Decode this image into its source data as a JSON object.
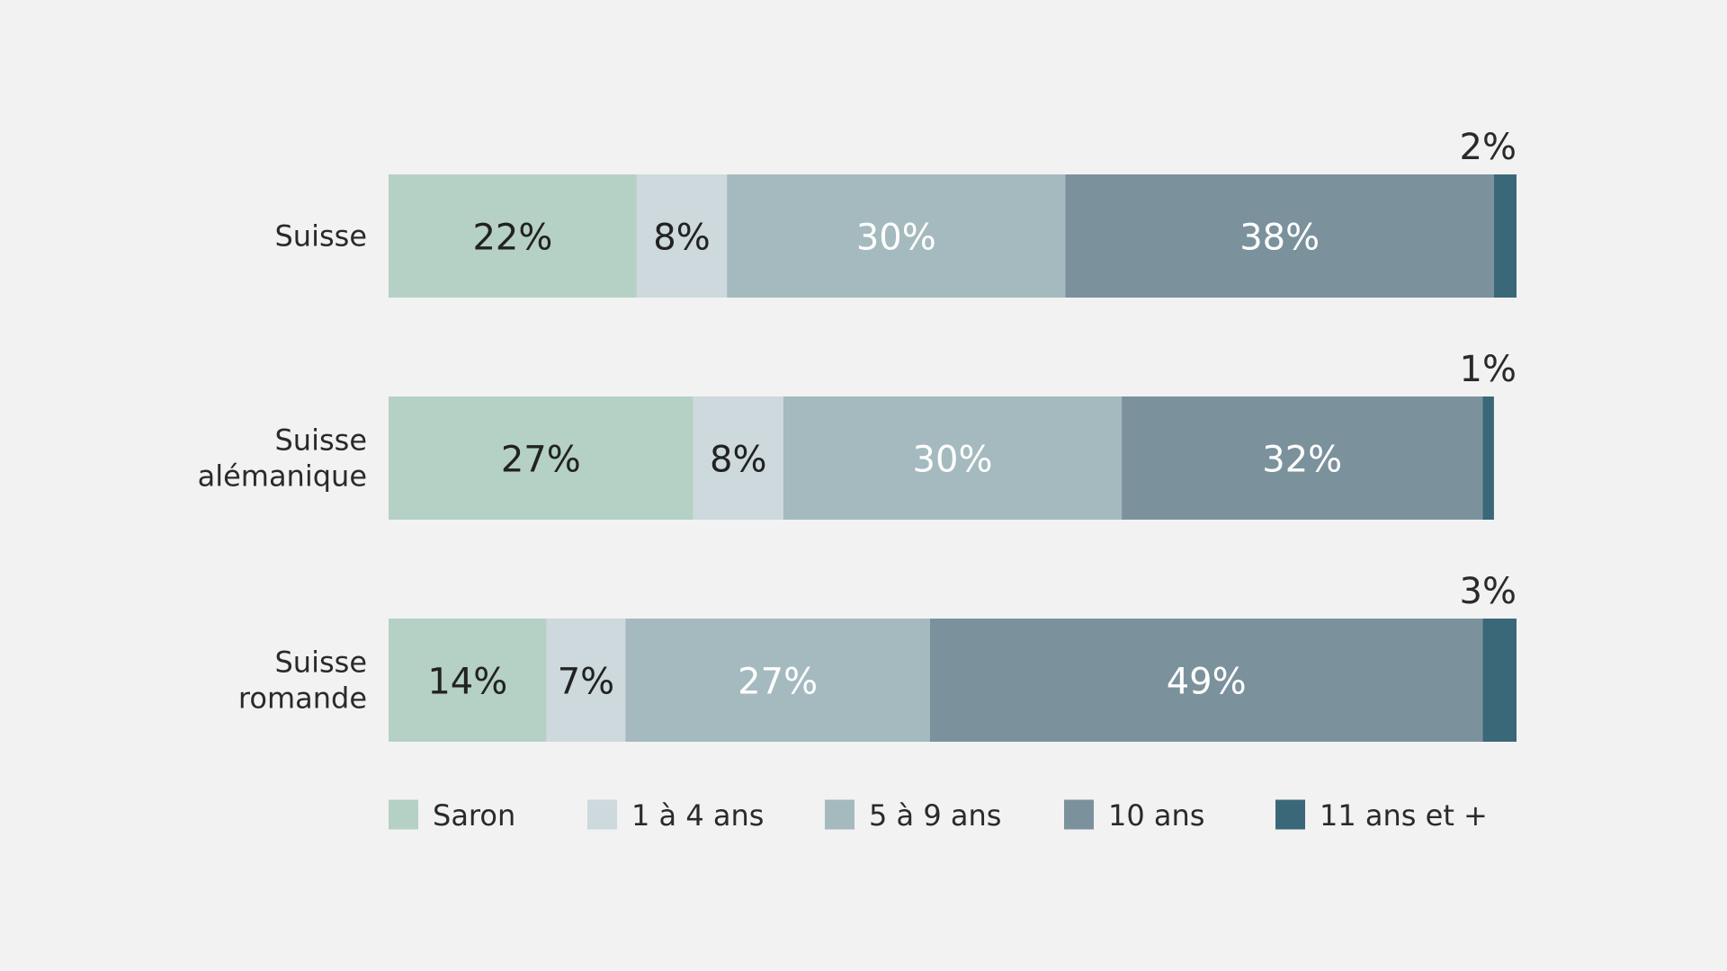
{
  "chart_data": {
    "type": "bar",
    "orientation": "horizontal",
    "stacked": true,
    "categories": [
      "Suisse",
      "Suisse alémanique",
      "Suisse romande"
    ],
    "category_lines": [
      [
        "Suisse"
      ],
      [
        "Suisse",
        "alémanique"
      ],
      [
        "Suisse",
        "romande"
      ]
    ],
    "series": [
      {
        "name": "Saron",
        "values": [
          22,
          27,
          14
        ],
        "labels": [
          "22%",
          "27%",
          "14%"
        ],
        "color": "#b5d0c5",
        "label_color": "#222222"
      },
      {
        "name": "1 à 4 ans",
        "values": [
          8,
          8,
          7
        ],
        "labels": [
          "8%",
          "8%",
          "7%"
        ],
        "color": "#cdd9dc",
        "label_color": "#222222"
      },
      {
        "name": "5 à 9 ans",
        "values": [
          30,
          30,
          27
        ],
        "labels": [
          "30%",
          "30%",
          "27%"
        ],
        "color": "#a4babe",
        "label_color": "#ffffff"
      },
      {
        "name": "10 ans",
        "values": [
          38,
          32,
          49
        ],
        "labels": [
          "38%",
          "32%",
          "49%"
        ],
        "color": "#7b929d",
        "label_color": "#ffffff"
      },
      {
        "name": "11 ans et +",
        "values": [
          2,
          1,
          3
        ],
        "labels": [
          "2%",
          "1%",
          "3%"
        ],
        "color": "#3b6878",
        "label_color": "#222222",
        "label_position": "outside-above"
      }
    ],
    "xlim": [
      0,
      100
    ],
    "grid": false,
    "legend_position": "bottom"
  }
}
